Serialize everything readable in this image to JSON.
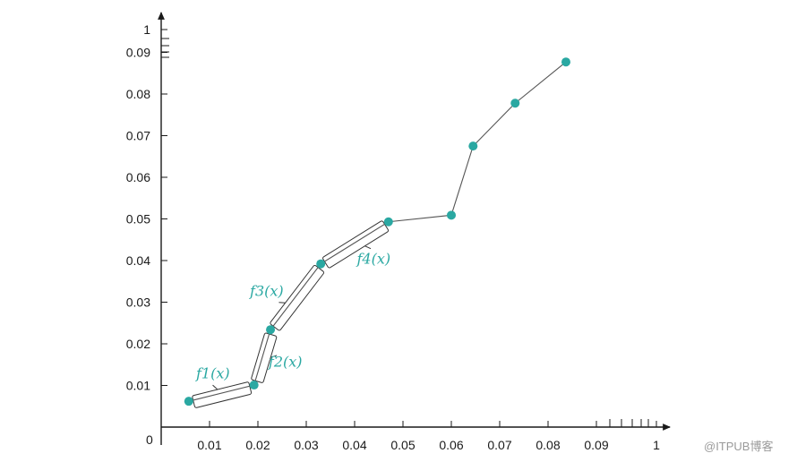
{
  "chart_data": {
    "type": "line",
    "title": "",
    "xlabel": "",
    "ylabel": "",
    "origin_label": "0",
    "x_ticks": [
      {
        "value": 0.01,
        "label": "0.01"
      },
      {
        "value": 0.02,
        "label": "0.02"
      },
      {
        "value": 0.03,
        "label": "0.03"
      },
      {
        "value": 0.04,
        "label": "0.04"
      },
      {
        "value": 0.05,
        "label": "0.05"
      },
      {
        "value": 0.06,
        "label": "0.06"
      },
      {
        "value": 0.07,
        "label": "0.07"
      },
      {
        "value": 0.08,
        "label": "0.08"
      },
      {
        "value": 0.09,
        "label": "0.09"
      },
      {
        "value": 1,
        "label": "1"
      }
    ],
    "y_ticks": [
      {
        "value": 0.01,
        "label": "0.01"
      },
      {
        "value": 0.02,
        "label": "0.02"
      },
      {
        "value": 0.03,
        "label": "0.03"
      },
      {
        "value": 0.04,
        "label": "0.04"
      },
      {
        "value": 0.05,
        "label": "0.05"
      },
      {
        "value": 0.06,
        "label": "0.06"
      },
      {
        "value": 0.07,
        "label": "0.07"
      },
      {
        "value": 0.08,
        "label": "0.08"
      },
      {
        "value": 0.09,
        "label": "0.09"
      },
      {
        "value": 1,
        "label": "1"
      }
    ],
    "series": [
      {
        "points": [
          {
            "x": 0.0057,
            "y": 0.0062
          },
          {
            "x": 0.0192,
            "y": 0.0101
          },
          {
            "x": 0.0226,
            "y": 0.0234
          },
          {
            "x": 0.033,
            "y": 0.0392
          },
          {
            "x": 0.047,
            "y": 0.0493
          },
          {
            "x": 0.06,
            "y": 0.0509
          },
          {
            "x": 0.0645,
            "y": 0.0675
          },
          {
            "x": 0.0732,
            "y": 0.0778
          },
          {
            "x": 0.0837,
            "y": 0.0877
          }
        ],
        "color": "#2aa8a2"
      }
    ],
    "annotations": [
      {
        "label": "f1(x)",
        "segment": 0
      },
      {
        "label": "f2(x)",
        "segment": 1
      },
      {
        "label": "f3(x)",
        "segment": 2
      },
      {
        "label": "f4(x)",
        "segment": 3
      }
    ],
    "grid": false,
    "legend": "none"
  },
  "colors": {
    "marker": "#2aa8a2",
    "annotation": "#2aa8a2",
    "line": "#555555",
    "axis": "#1a1a1a"
  },
  "watermark": "@ITPUB博客"
}
